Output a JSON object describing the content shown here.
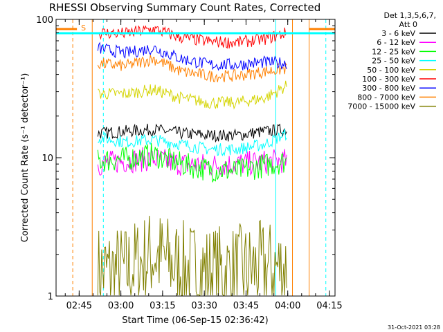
{
  "chart_data": {
    "type": "line",
    "title": "RHESSI Observing Summary Count Rates, Corrected",
    "xlabel": "Start Time (06-Sep-15 02:36:42)",
    "ylabel": "Corrected Count Rate (s⁻¹ detector⁻¹)",
    "yscale": "log",
    "ylim": [
      1,
      100
    ],
    "xlim_minutes_after_start": [
      0,
      100.3
    ],
    "x_tick_labels": [
      "02:45",
      "03:00",
      "03:15",
      "03:30",
      "03:45",
      "04:00",
      "04:15"
    ],
    "y_tick_labels": [
      "1",
      "10",
      "100"
    ],
    "legend": {
      "placement": "right",
      "header_line1": "Det 1,3,5,6,7,",
      "header_line2": "Att 0"
    },
    "flag_label": "S",
    "x_unit": "minutes after 02:36:42",
    "series": [
      {
        "name": "3 - 6 keV",
        "color": "#000000",
        "x": [
          15,
          25,
          35,
          45,
          55,
          65,
          75,
          83
        ],
        "values": [
          15,
          15.5,
          16,
          15,
          14.5,
          14.5,
          15.5,
          16
        ]
      },
      {
        "name": "6 - 12 keV",
        "color": "#ff00ff",
        "x": [
          15,
          25,
          35,
          45,
          55,
          65,
          75,
          83
        ],
        "values": [
          9,
          9.5,
          9.8,
          9,
          8.8,
          9,
          9.3,
          9.5
        ]
      },
      {
        "name": "12 - 25 keV",
        "color": "#00ff00",
        "x": [
          15,
          25,
          35,
          45,
          55,
          65,
          75,
          83
        ],
        "values": [
          9.5,
          9.8,
          10.5,
          9,
          8.2,
          8,
          8.8,
          9.5
        ]
      },
      {
        "name": "25 - 50 keV",
        "color": "#00ffff",
        "x": [
          15,
          25,
          35,
          45,
          55,
          65,
          75,
          83
        ],
        "values": [
          14,
          13,
          13.5,
          12.5,
          11.5,
          11.5,
          12.5,
          15
        ]
      },
      {
        "name": "50 - 100 keV",
        "color": "#d4d400",
        "x": [
          15,
          25,
          35,
          45,
          55,
          65,
          75,
          83
        ],
        "values": [
          29,
          29,
          31,
          27,
          25,
          25,
          27,
          33
        ]
      },
      {
        "name": "100 - 300 keV",
        "color": "#ff0000",
        "x": [
          15,
          25,
          35,
          45,
          55,
          65,
          75,
          83
        ],
        "values": [
          80,
          79,
          85,
          74,
          69,
          68,
          72,
          80
        ]
      },
      {
        "name": "300 - 800 keV",
        "color": "#0000ff",
        "x": [
          15,
          25,
          35,
          45,
          55,
          65,
          75,
          83
        ],
        "values": [
          62,
          57,
          62,
          52,
          47,
          47,
          49,
          48
        ]
      },
      {
        "name": "800 - 7000 keV",
        "color": "#ff8000",
        "x": [
          15,
          25,
          35,
          45,
          55,
          65,
          75,
          83
        ],
        "values": [
          48,
          46,
          52,
          42,
          39,
          39,
          42,
          44
        ]
      },
      {
        "name": "7000 - 15000 keV",
        "color": "#808000",
        "x": [
          15,
          25,
          35,
          45,
          55,
          65,
          75,
          83
        ],
        "values": [
          1.5,
          1.5,
          2,
          1.6,
          1.5,
          1.5,
          1.6,
          1.6
        ]
      }
    ],
    "vertical_markers": [
      {
        "x": 0,
        "color": "#00ffff",
        "style": "solid"
      },
      {
        "x": 6,
        "color": "#ff8000",
        "style": "dashed"
      },
      {
        "x": 13,
        "color": "#ff8000",
        "style": "solid"
      },
      {
        "x": 17,
        "color": "#00ffff",
        "style": "dashed"
      },
      {
        "x": 79,
        "color": "#00ffff",
        "style": "solid"
      },
      {
        "x": 85,
        "color": "#ff8000",
        "style": "solid"
      },
      {
        "x": 91,
        "color": "#ff8000",
        "style": "solid"
      },
      {
        "x": 97,
        "color": "#00ffff",
        "style": "dashed"
      }
    ]
  },
  "footer": {
    "timestamp": "31-Oct-2021 03:28"
  }
}
